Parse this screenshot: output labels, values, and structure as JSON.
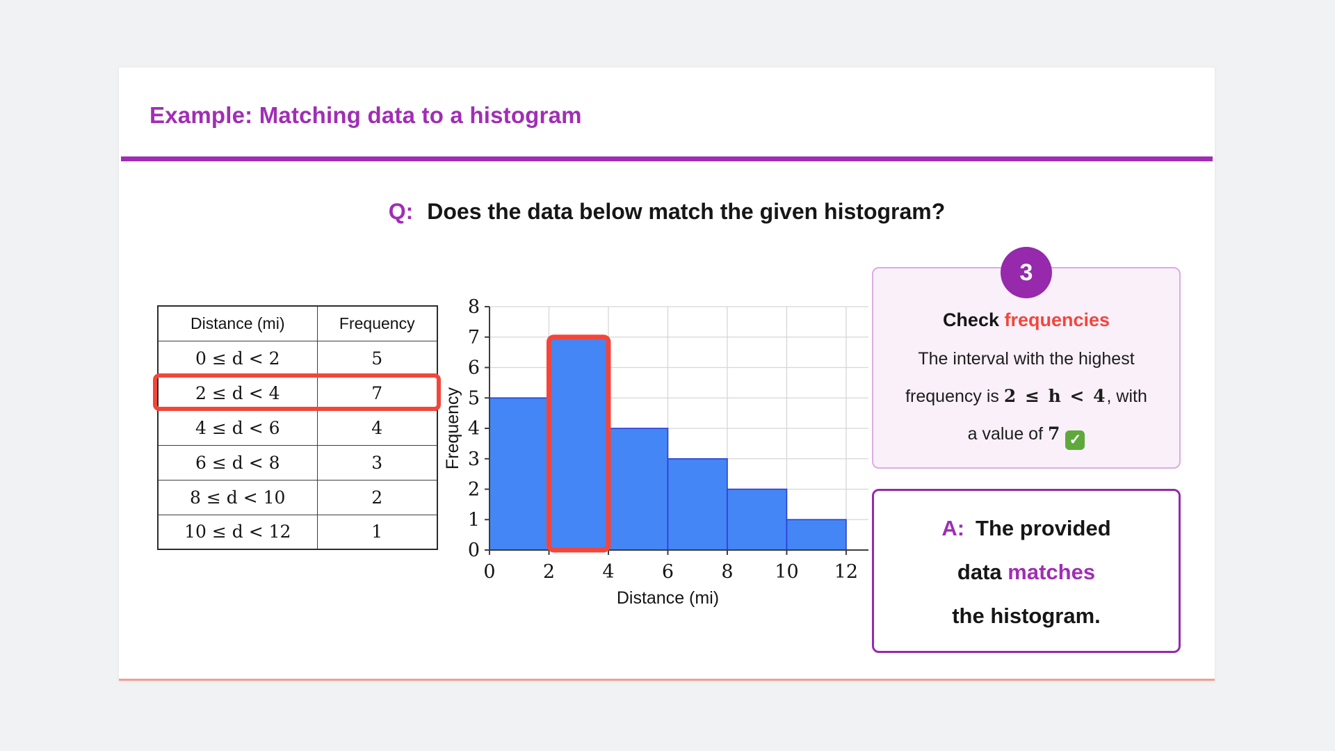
{
  "colors": {
    "purple": "#a12db6",
    "purple_dark": "#9629ac",
    "red": "#f2463b",
    "bar_blue": "#4486f5",
    "bar_edge": "#2c3ed6",
    "grid": "#d6d6d6",
    "axis": "#3c3c3c",
    "step_box_bg": "#f9f0fa",
    "step_box_border": "#ddabe4",
    "card_bottom_line": "#eca196",
    "check_green": "#5fa93c"
  },
  "header": {
    "title": "Example: Matching data to a histogram"
  },
  "question": {
    "label": "Q:",
    "text": "Does the data below match the given histogram?"
  },
  "table": {
    "headers": [
      "Distance (mi)",
      "Frequency"
    ],
    "rows": [
      {
        "interval": "0 ≤ d < 2",
        "frequency": "5"
      },
      {
        "interval": "2 ≤ d < 4",
        "frequency": "7"
      },
      {
        "interval": "4 ≤ d < 6",
        "frequency": "4"
      },
      {
        "interval": "6 ≤ d < 8",
        "frequency": "3"
      },
      {
        "interval": "8 ≤ d < 10",
        "frequency": "2"
      },
      {
        "interval": "10 ≤ d < 12",
        "frequency": "1"
      }
    ],
    "highlighted_row_index": 1
  },
  "chart_data": {
    "type": "bar",
    "title": "",
    "xlabel": "Distance (mi)",
    "ylabel": "Frequency",
    "bins": [
      {
        "range": [
          0,
          2
        ],
        "value": 5
      },
      {
        "range": [
          2,
          4
        ],
        "value": 7
      },
      {
        "range": [
          4,
          6
        ],
        "value": 4
      },
      {
        "range": [
          6,
          8
        ],
        "value": 3
      },
      {
        "range": [
          8,
          10
        ],
        "value": 2
      },
      {
        "range": [
          10,
          12
        ],
        "value": 1
      }
    ],
    "highlighted_bin_index": 1,
    "x_ticks": [
      0,
      2,
      4,
      6,
      8,
      10,
      12
    ],
    "y_ticks": [
      0,
      1,
      2,
      3,
      4,
      5,
      6,
      7,
      8
    ],
    "xlim": [
      0,
      12.75
    ],
    "ylim": [
      0,
      8
    ],
    "grid": true,
    "legend": false
  },
  "step_box": {
    "number": "3",
    "title_prefix": "Check",
    "title_highlight": "frequencies",
    "line1": "The interval with the highest",
    "line2_prefix": "frequency is",
    "line2_math": "2 ≤ h < 4",
    "line2_suffix": ", with",
    "line3_prefix": "a value of",
    "line3_value": "7",
    "check_mark": "✓"
  },
  "answer_box": {
    "label": "A:",
    "line1": "The provided",
    "line2_prefix": "data",
    "line2_highlight": "matches",
    "line3": "the histogram."
  }
}
